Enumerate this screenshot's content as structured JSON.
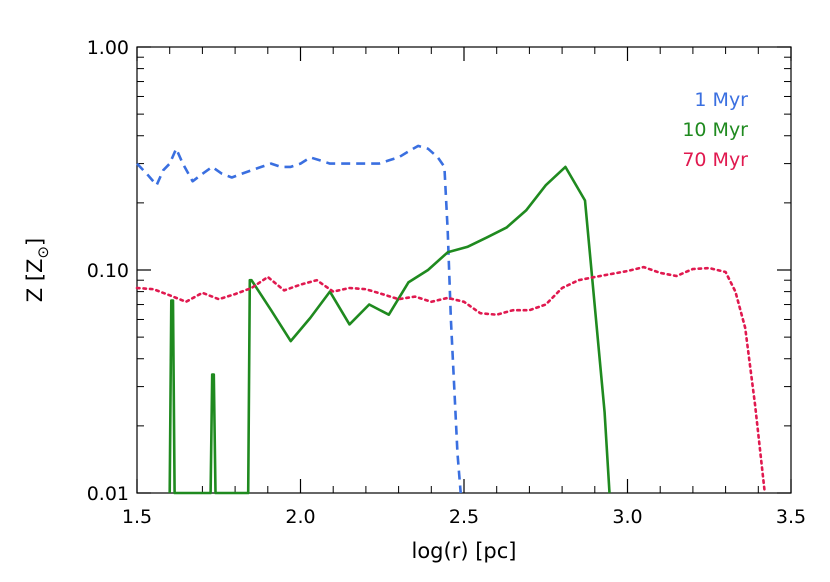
{
  "chart_data": {
    "type": "line",
    "xlabel": "log(r) [pc]",
    "ylabel": "Z [Z",
    "ylabel_sub": "⊙",
    "ylabel_close": "]",
    "xlim": [
      1.5,
      3.5
    ],
    "ylim": [
      0.01,
      1.0
    ],
    "yscale": "log",
    "grid": false,
    "legend_position": "top-right",
    "x_ticks": [
      1.5,
      2.0,
      2.5,
      3.0,
      3.5
    ],
    "x_tick_labels": [
      "1.5",
      "2.0",
      "2.5",
      "3.0",
      "3.5"
    ],
    "y_ticks": [
      0.01,
      0.1,
      1.0
    ],
    "y_tick_labels": [
      "0.01",
      "0.10",
      "1.00"
    ],
    "series": [
      {
        "name": "1 Myr",
        "color": "#3a6fe0",
        "style": "dashed",
        "x": [
          1.5,
          1.53,
          1.56,
          1.58,
          1.6,
          1.62,
          1.64,
          1.67,
          1.7,
          1.73,
          1.76,
          1.79,
          1.82,
          1.85,
          1.88,
          1.91,
          1.94,
          1.97,
          2.0,
          2.03,
          2.06,
          2.09,
          2.12,
          2.15,
          2.18,
          2.21,
          2.24,
          2.27,
          2.3,
          2.33,
          2.36,
          2.39,
          2.42,
          2.44,
          2.45,
          2.46,
          2.47,
          2.48,
          2.49
        ],
        "y": [
          0.3,
          0.27,
          0.24,
          0.28,
          0.3,
          0.35,
          0.3,
          0.25,
          0.27,
          0.29,
          0.27,
          0.26,
          0.27,
          0.28,
          0.29,
          0.3,
          0.29,
          0.29,
          0.3,
          0.32,
          0.31,
          0.3,
          0.3,
          0.3,
          0.3,
          0.3,
          0.3,
          0.31,
          0.32,
          0.34,
          0.36,
          0.35,
          0.32,
          0.29,
          0.15,
          0.06,
          0.03,
          0.015,
          0.01
        ]
      },
      {
        "name": "10 Myr",
        "color": "#1f8a1f",
        "style": "solid",
        "x": [
          1.6,
          1.605,
          1.61,
          1.615,
          1.62,
          1.725,
          1.73,
          1.735,
          1.74,
          1.84,
          1.845,
          1.85,
          1.91,
          1.97,
          2.03,
          2.09,
          2.15,
          2.21,
          2.27,
          2.33,
          2.39,
          2.45,
          2.51,
          2.57,
          2.63,
          2.69,
          2.75,
          2.81,
          2.87,
          2.93,
          2.945
        ],
        "y": [
          0.01,
          0.073,
          0.073,
          0.01,
          0.01,
          0.01,
          0.034,
          0.034,
          0.01,
          0.01,
          0.09,
          0.09,
          0.066,
          0.048,
          0.061,
          0.08,
          0.057,
          0.07,
          0.063,
          0.088,
          0.1,
          0.12,
          0.127,
          0.14,
          0.155,
          0.185,
          0.24,
          0.29,
          0.205,
          0.023,
          0.01
        ]
      },
      {
        "name": "70 Myr",
        "color": "#e0194f",
        "style": "dotted",
        "x": [
          1.5,
          1.55,
          1.6,
          1.65,
          1.7,
          1.75,
          1.8,
          1.85,
          1.9,
          1.95,
          2.0,
          2.05,
          2.1,
          2.15,
          2.2,
          2.25,
          2.3,
          2.35,
          2.4,
          2.45,
          2.5,
          2.55,
          2.6,
          2.65,
          2.7,
          2.75,
          2.8,
          2.85,
          2.9,
          2.95,
          3.0,
          3.05,
          3.1,
          3.15,
          3.2,
          3.25,
          3.3,
          3.33,
          3.36,
          3.39,
          3.42
        ],
        "y": [
          0.083,
          0.082,
          0.077,
          0.072,
          0.079,
          0.074,
          0.078,
          0.083,
          0.093,
          0.081,
          0.086,
          0.09,
          0.08,
          0.083,
          0.082,
          0.078,
          0.074,
          0.076,
          0.072,
          0.075,
          0.072,
          0.064,
          0.063,
          0.066,
          0.066,
          0.07,
          0.083,
          0.09,
          0.093,
          0.096,
          0.099,
          0.103,
          0.097,
          0.094,
          0.101,
          0.102,
          0.098,
          0.08,
          0.055,
          0.025,
          0.01
        ]
      }
    ]
  }
}
